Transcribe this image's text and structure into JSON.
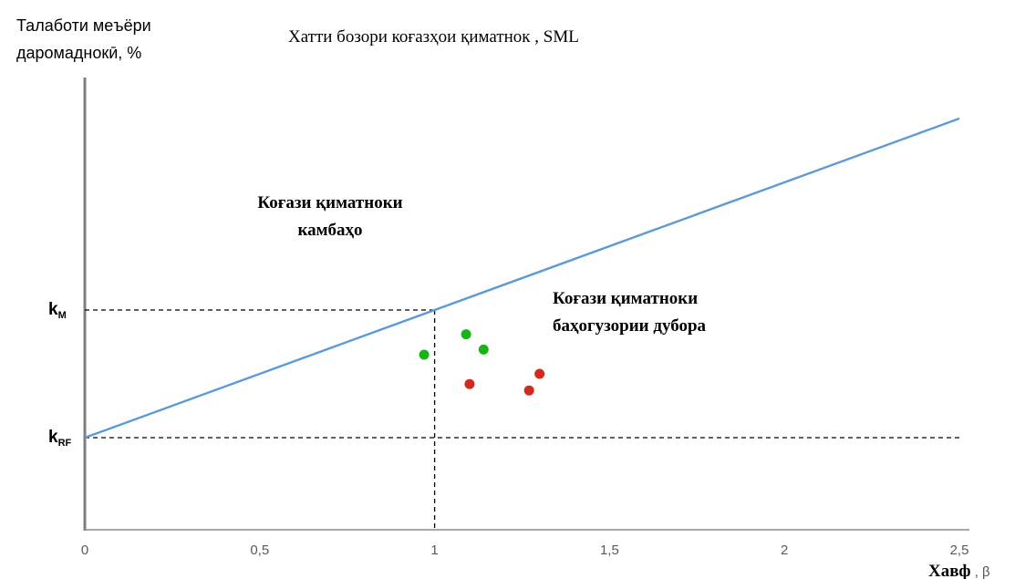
{
  "chart_data": {
    "type": "line",
    "title": "Хатти бозори коғазҳои қиматнок , SML",
    "ylabel_lines": [
      "Талаботи меъёри",
      "даромаднокӣ, %"
    ],
    "xlabel_main": "Хавф",
    "xlabel_suffix": " , β",
    "xlim": [
      0,
      2.5
    ],
    "x_ticks": [
      {
        "value": 0,
        "label": "0"
      },
      {
        "value": 0.5,
        "label": "0,5"
      },
      {
        "value": 1,
        "label": "1"
      },
      {
        "value": 1.5,
        "label": "1,5"
      },
      {
        "value": 2,
        "label": "2"
      },
      {
        "value": 2.5,
        "label": "2,5"
      }
    ],
    "y_markers": [
      {
        "label_main": "k",
        "label_sub": "RF",
        "beta_end": 2.5
      },
      {
        "label_main": "k",
        "label_sub": "M",
        "beta_end": 1
      }
    ],
    "sml_line": {
      "x": [
        0,
        2.5
      ],
      "color": "#5b9bd5"
    },
    "groups": [
      {
        "label_lines": [
          "Коғази қиматноки",
          "камбаҳо"
        ],
        "color": "#17b317",
        "points": [
          [
            0.97,
            0.65
          ],
          [
            1.09,
            0.81
          ],
          [
            1.14,
            0.69
          ]
        ]
      },
      {
        "label_lines": [
          "Коғази қиматноки",
          "баҳогузории дубора"
        ],
        "color": "#d42a1e",
        "points": [
          [
            1.1,
            0.42
          ],
          [
            1.27,
            0.37
          ],
          [
            1.3,
            0.5
          ]
        ]
      }
    ],
    "grid": false,
    "legend": "none"
  }
}
